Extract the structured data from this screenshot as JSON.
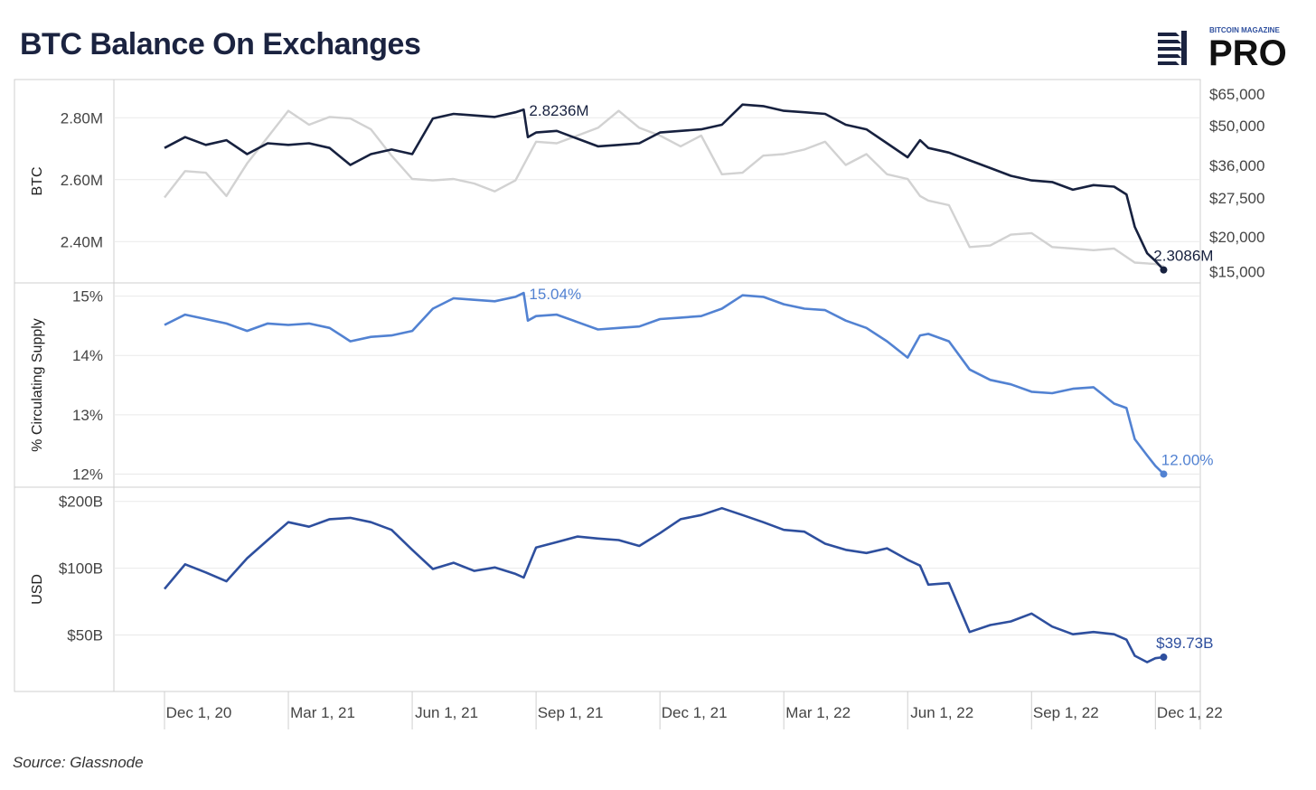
{
  "title": "BTC Balance On Exchanges",
  "source": "Source: Glassnode",
  "logo": {
    "top_text": "BITCOIN MAGAZINE",
    "main_text": "PRO"
  },
  "x_ticks": [
    "Dec 1, 20",
    "Mar 1, 21",
    "Jun 1, 21",
    "Sep 1, 21",
    "Dec 1, 21",
    "Mar 1, 22",
    "Jun 1, 22",
    "Sep 1, 22",
    "Dec 1, 22"
  ],
  "colors": {
    "btc": "#17213f",
    "price": "#d2d2d2",
    "pct": "#5282d2",
    "usd": "#2e4f9e",
    "grid": "#e9e9e9",
    "frame": "#cfcfcf"
  },
  "chart_data": [
    {
      "type": "line",
      "ylabel": "BTC",
      "y_ticks": [
        "2.80M",
        "2.60M",
        "2.40M"
      ],
      "right_ticks": [
        "$65,000",
        "$50,000",
        "$36,000",
        "$27,500",
        "$20,000",
        "$15,000"
      ],
      "ylim": [
        2.29,
        2.9
      ],
      "annotations": [
        {
          "text": "2.8236M",
          "x": 8.7,
          "y": 2.8236
        },
        {
          "text": "2.3086M",
          "x": 24.2,
          "y": 2.3086
        }
      ],
      "series": [
        {
          "values": [
            [
              0,
              2.7
            ],
            [
              0.5,
              2.74
            ],
            [
              1,
              2.71
            ],
            [
              1.5,
              2.73
            ],
            [
              2,
              2.68
            ],
            [
              2.5,
              2.72
            ],
            [
              3,
              2.71
            ],
            [
              3.5,
              2.72
            ],
            [
              4,
              2.7
            ],
            [
              4.5,
              2.65
            ],
            [
              5,
              2.68
            ],
            [
              5.5,
              2.7
            ],
            [
              6,
              2.68
            ],
            [
              6.5,
              2.8
            ],
            [
              7,
              2.81
            ],
            [
              7.5,
              2.81
            ],
            [
              8,
              2.8
            ],
            [
              8.5,
              2.82
            ],
            [
              8.7,
              2.8236
            ],
            [
              8.8,
              2.74
            ],
            [
              9,
              2.75
            ],
            [
              9.5,
              2.76
            ],
            [
              10,
              2.73
            ],
            [
              10.5,
              2.71
            ],
            [
              11,
              2.71
            ],
            [
              11.5,
              2.72
            ],
            [
              12,
              2.75
            ],
            [
              12.5,
              2.76
            ],
            [
              13,
              2.76
            ],
            [
              13.5,
              2.78
            ],
            [
              14,
              2.84
            ],
            [
              14.5,
              2.84
            ],
            [
              15,
              2.82
            ],
            [
              15.5,
              2.82
            ],
            [
              16,
              2.81
            ],
            [
              16.5,
              2.78
            ],
            [
              17,
              2.76
            ],
            [
              17.5,
              2.72
            ],
            [
              18,
              2.67
            ],
            [
              18.3,
              2.73
            ],
            [
              18.5,
              2.7
            ],
            [
              19,
              2.69
            ],
            [
              19.5,
              2.66
            ],
            [
              20,
              2.64
            ],
            [
              20.5,
              2.61
            ],
            [
              21,
              2.6
            ],
            [
              21.5,
              2.59
            ],
            [
              22,
              2.57
            ],
            [
              22.5,
              2.58
            ],
            [
              23,
              2.58
            ],
            [
              23.3,
              2.55
            ],
            [
              23.5,
              2.45
            ],
            [
              23.8,
              2.36
            ],
            [
              24,
              2.34
            ],
            [
              24.2,
              2.3086
            ]
          ]
        },
        {
          "values": [
            [
              0,
              2.54
            ],
            [
              0.5,
              2.63
            ],
            [
              1,
              2.62
            ],
            [
              1.5,
              2.55
            ],
            [
              2,
              2.65
            ],
            [
              2.5,
              2.74
            ],
            [
              3,
              2.82
            ],
            [
              3.5,
              2.78
            ],
            [
              4,
              2.8
            ],
            [
              4.5,
              2.8
            ],
            [
              5,
              2.76
            ],
            [
              5.5,
              2.68
            ],
            [
              6,
              2.6
            ],
            [
              6.5,
              2.6
            ],
            [
              7,
              2.6
            ],
            [
              7.5,
              2.59
            ],
            [
              8,
              2.56
            ],
            [
              8.5,
              2.6
            ],
            [
              9,
              2.72
            ],
            [
              9.5,
              2.72
            ],
            [
              10,
              2.74
            ],
            [
              10.5,
              2.77
            ],
            [
              11,
              2.82
            ],
            [
              11.5,
              2.77
            ],
            [
              12,
              2.74
            ],
            [
              12.5,
              2.71
            ],
            [
              13,
              2.74
            ],
            [
              13.5,
              2.62
            ],
            [
              14,
              2.62
            ],
            [
              14.5,
              2.68
            ],
            [
              15,
              2.68
            ],
            [
              15.5,
              2.7
            ],
            [
              16,
              2.72
            ],
            [
              16.5,
              2.65
            ],
            [
              17,
              2.68
            ],
            [
              17.5,
              2.62
            ],
            [
              18,
              2.6
            ],
            [
              18.3,
              2.55
            ],
            [
              18.5,
              2.53
            ],
            [
              19,
              2.52
            ],
            [
              19.5,
              2.38
            ],
            [
              20,
              2.39
            ],
            [
              20.5,
              2.42
            ],
            [
              21,
              2.43
            ],
            [
              21.5,
              2.38
            ],
            [
              22,
              2.38
            ],
            [
              22.5,
              2.37
            ],
            [
              23,
              2.38
            ],
            [
              23.5,
              2.33
            ],
            [
              24,
              2.33
            ],
            [
              24.2,
              2.32
            ]
          ]
        }
      ]
    },
    {
      "type": "line",
      "ylabel": "% Circulating Supply",
      "y_ticks": [
        "15%",
        "14%",
        "13%",
        "12%"
      ],
      "ylim": [
        11.9,
        15.1
      ],
      "annotations": [
        {
          "text": "15.04%",
          "x": 8.7,
          "y": 15.04
        },
        {
          "text": "12.00%",
          "x": 24.2,
          "y": 12.0
        }
      ],
      "series": [
        {
          "values": [
            [
              0,
              14.5
            ],
            [
              0.5,
              14.7
            ],
            [
              1,
              14.6
            ],
            [
              1.5,
              14.55
            ],
            [
              2,
              14.4
            ],
            [
              2.5,
              14.55
            ],
            [
              3,
              14.5
            ],
            [
              3.5,
              14.55
            ],
            [
              4,
              14.45
            ],
            [
              4.5,
              14.25
            ],
            [
              5,
              14.3
            ],
            [
              5.5,
              14.35
            ],
            [
              6,
              14.4
            ],
            [
              6.5,
              14.8
            ],
            [
              7,
              14.95
            ],
            [
              7.5,
              14.95
            ],
            [
              8,
              14.9
            ],
            [
              8.5,
              15.0
            ],
            [
              8.7,
              15.04
            ],
            [
              8.8,
              14.6
            ],
            [
              9,
              14.65
            ],
            [
              9.5,
              14.7
            ],
            [
              10,
              14.55
            ],
            [
              10.5,
              14.45
            ],
            [
              11,
              14.45
            ],
            [
              11.5,
              14.5
            ],
            [
              12,
              14.6
            ],
            [
              12.5,
              14.65
            ],
            [
              13,
              14.65
            ],
            [
              13.5,
              14.8
            ],
            [
              14,
              15.0
            ],
            [
              14.5,
              15.0
            ],
            [
              15,
              14.85
            ],
            [
              15.5,
              14.8
            ],
            [
              16,
              14.75
            ],
            [
              16.5,
              14.6
            ],
            [
              17,
              14.45
            ],
            [
              17.5,
              14.25
            ],
            [
              18,
              13.95
            ],
            [
              18.3,
              14.35
            ],
            [
              18.5,
              14.35
            ],
            [
              19,
              14.25
            ],
            [
              19.5,
              13.75
            ],
            [
              20,
              13.6
            ],
            [
              20.5,
              13.5
            ],
            [
              21,
              13.4
            ],
            [
              21.5,
              13.35
            ],
            [
              22,
              13.45
            ],
            [
              22.5,
              13.45
            ],
            [
              23,
              13.2
            ],
            [
              23.3,
              13.1
            ],
            [
              23.5,
              12.6
            ],
            [
              23.8,
              12.3
            ],
            [
              24,
              12.15
            ],
            [
              24.2,
              12.0
            ]
          ]
        }
      ]
    },
    {
      "type": "line",
      "ylabel": "USD",
      "y_ticks": [
        "$200B",
        "$100B",
        "$50B"
      ],
      "ylim": [
        30,
        215
      ],
      "log_scale": true,
      "annotations": [
        {
          "text": "$39.73B",
          "x": 24.2,
          "y": 39.73
        }
      ],
      "series": [
        {
          "values": [
            [
              0,
              80
            ],
            [
              0.5,
              105
            ],
            [
              1,
              95
            ],
            [
              1.5,
              88
            ],
            [
              2,
              110
            ],
            [
              2.5,
              135
            ],
            [
              3,
              160
            ],
            [
              3.5,
              155
            ],
            [
              4,
              165
            ],
            [
              4.5,
              170
            ],
            [
              5,
              160
            ],
            [
              5.5,
              150
            ],
            [
              6,
              120
            ],
            [
              6.5,
              100
            ],
            [
              7,
              105
            ],
            [
              7.5,
              98
            ],
            [
              8,
              100
            ],
            [
              8.5,
              95
            ],
            [
              8.7,
              90
            ],
            [
              9,
              125
            ],
            [
              9.5,
              130
            ],
            [
              10,
              140
            ],
            [
              10.5,
              135
            ],
            [
              11,
              135
            ],
            [
              11.5,
              125
            ],
            [
              12,
              145
            ],
            [
              12.5,
              165
            ],
            [
              13,
              175
            ],
            [
              13.5,
              185
            ],
            [
              14,
              175
            ],
            [
              14.5,
              160
            ],
            [
              15,
              150
            ],
            [
              15.5,
              145
            ],
            [
              16,
              130
            ],
            [
              16.5,
              120
            ],
            [
              17,
              118
            ],
            [
              17.5,
              122
            ],
            [
              18,
              110
            ],
            [
              18.3,
              102
            ],
            [
              18.5,
              85
            ],
            [
              19,
              85
            ],
            [
              19.5,
              52
            ],
            [
              20,
              55
            ],
            [
              20.5,
              58
            ],
            [
              21,
              62
            ],
            [
              21.5,
              55
            ],
            [
              22,
              50
            ],
            [
              22.5,
              52
            ],
            [
              23,
              50
            ],
            [
              23.3,
              48
            ],
            [
              23.5,
              40
            ],
            [
              23.8,
              38
            ],
            [
              24,
              39
            ],
            [
              24.2,
              39.73
            ]
          ]
        }
      ]
    }
  ]
}
